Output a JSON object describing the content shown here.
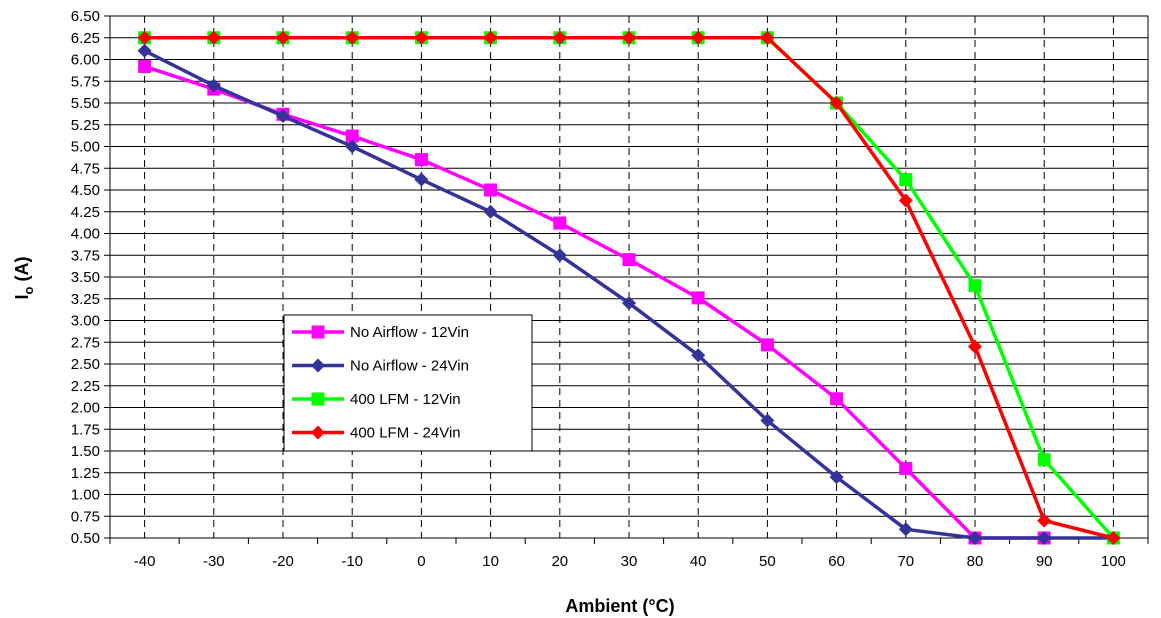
{
  "chart_data": {
    "type": "line",
    "xlabel": "Ambient (°C)",
    "ylabel_main": "I",
    "ylabel_sub": "o",
    "ylabel_unit": " (A)",
    "x": [
      -40,
      -30,
      -20,
      -10,
      0,
      10,
      20,
      30,
      40,
      50,
      60,
      70,
      80,
      90,
      100
    ],
    "x_tick_labels": [
      "-40",
      "-30",
      "-20",
      "-10",
      "0",
      "10",
      "20",
      "30",
      "40",
      "50",
      "60",
      "70",
      "80",
      "90",
      "100"
    ],
    "ylim": [
      0.5,
      6.5
    ],
    "y_tick_labels": [
      "6.50",
      "6.25",
      "6.00",
      "5.75",
      "5.50",
      "5.25",
      "5.00",
      "4.75",
      "4.50",
      "4.25",
      "4.00",
      "3.75",
      "3.50",
      "3.25",
      "3.00",
      "2.75",
      "2.50",
      "2.25",
      "2.00",
      "1.75",
      "1.50",
      "1.25",
      "1.00",
      "0.75",
      "0.50"
    ],
    "grid": true,
    "legend_position": "center-left",
    "series": [
      {
        "name": "No Airflow - 12Vin",
        "color": "#ff00ff",
        "marker": "square",
        "x": [
          -40,
          -30,
          -20,
          -10,
          0,
          10,
          20,
          30,
          40,
          50,
          60,
          70,
          80,
          90
        ],
        "y": [
          5.92,
          5.66,
          5.37,
          5.12,
          4.85,
          4.5,
          4.12,
          3.7,
          3.26,
          2.72,
          2.1,
          1.3,
          0.5,
          0.5
        ]
      },
      {
        "name": "No Airflow - 24Vin",
        "color": "#333399",
        "marker": "diamond",
        "x": [
          -40,
          -30,
          -20,
          -10,
          0,
          10,
          20,
          30,
          40,
          50,
          60,
          70,
          80,
          90,
          100
        ],
        "y": [
          6.1,
          5.7,
          5.35,
          5.0,
          4.62,
          4.25,
          3.75,
          3.2,
          2.6,
          1.85,
          1.2,
          0.6,
          0.5,
          0.5,
          0.5
        ]
      },
      {
        "name": "400 LFM - 12Vin",
        "color": "#00ff00",
        "marker": "square",
        "x": [
          -40,
          -30,
          -20,
          -10,
          0,
          10,
          20,
          30,
          40,
          50,
          60,
          70,
          80,
          90,
          100
        ],
        "y": [
          6.25,
          6.25,
          6.25,
          6.25,
          6.25,
          6.25,
          6.25,
          6.25,
          6.25,
          6.25,
          5.5,
          4.62,
          3.4,
          1.4,
          0.5
        ]
      },
      {
        "name": "400 LFM - 24Vin",
        "color": "#ff0000",
        "marker": "diamond",
        "x": [
          -40,
          -30,
          -20,
          -10,
          0,
          10,
          20,
          30,
          40,
          50,
          60,
          70,
          80,
          90,
          100
        ],
        "y": [
          6.25,
          6.25,
          6.25,
          6.25,
          6.25,
          6.25,
          6.25,
          6.25,
          6.25,
          6.25,
          5.5,
          4.38,
          2.7,
          0.7,
          0.5
        ]
      }
    ]
  }
}
